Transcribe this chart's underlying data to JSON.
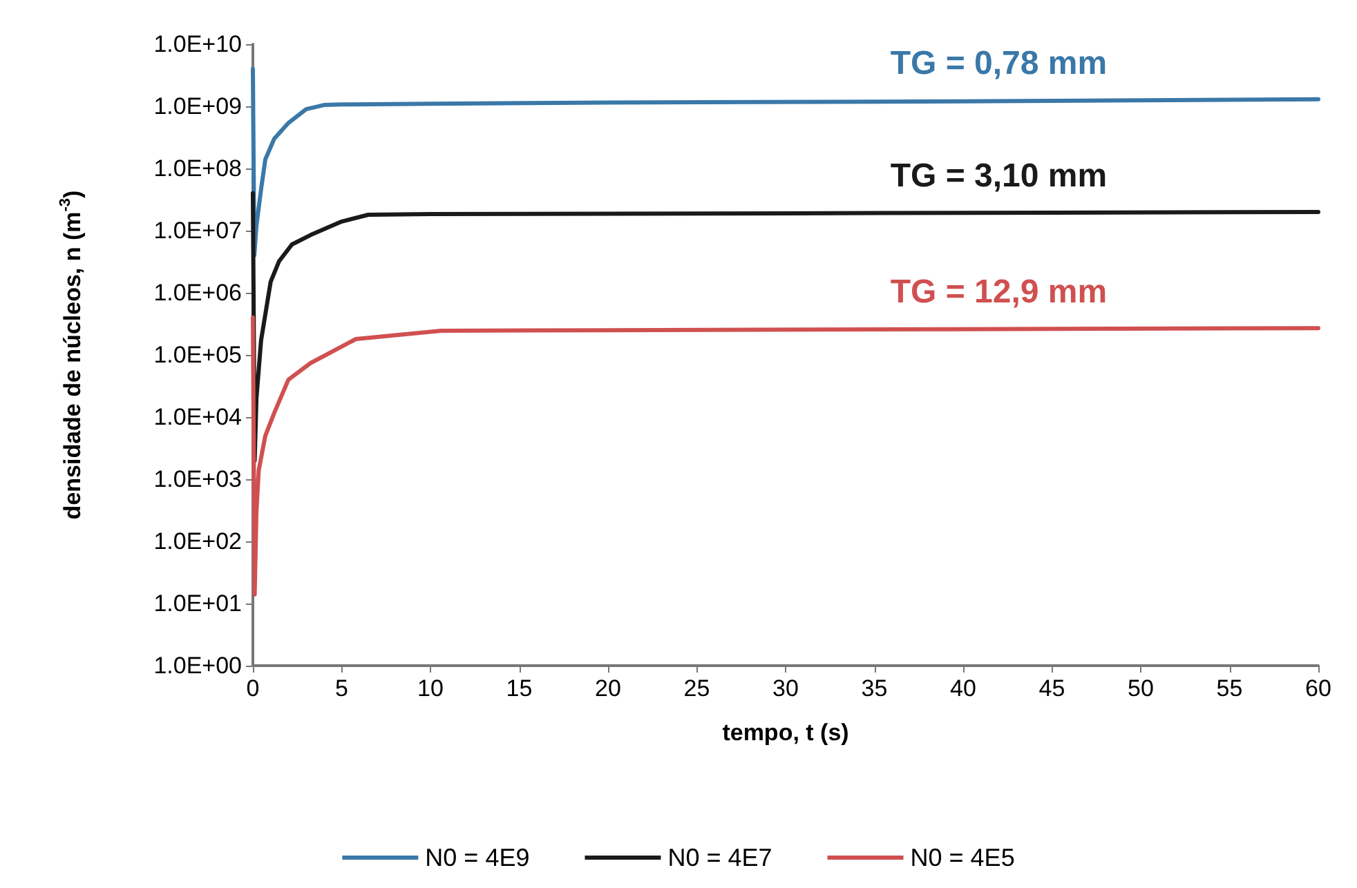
{
  "chart_data": {
    "type": "line",
    "xlabel": "tempo, t (s)",
    "ylabel": "densidade de núcleos, n (m$^{-3}$)",
    "log": "y",
    "xlim": [
      0,
      60
    ],
    "xticks": [
      0,
      5,
      10,
      15,
      20,
      25,
      30,
      35,
      40,
      45,
      50,
      55,
      60
    ],
    "ylim": [
      1,
      10000000000
    ],
    "yticks": [
      {
        "value": 1,
        "label": "1.0E+00"
      },
      {
        "value": 10,
        "label": "1.0E+01"
      },
      {
        "value": 100,
        "label": "1.0E+02"
      },
      {
        "value": 1000,
        "label": "1.0E+03"
      },
      {
        "value": 10000,
        "label": "1.0E+04"
      },
      {
        "value": 100000,
        "label": "1.0E+05"
      },
      {
        "value": 1000000,
        "label": "1.0E+06"
      },
      {
        "value": 10000000,
        "label": "1.0E+07"
      },
      {
        "value": 100000000,
        "label": "1.0E+08"
      },
      {
        "value": 1000000000,
        "label": "1.0E+09"
      },
      {
        "value": 10000000000,
        "label": "1.0E+10"
      }
    ],
    "grid": false,
    "legend": "bottom",
    "marker": "none",
    "line_style": "solid",
    "series": [
      {
        "name": "N0 = 4E9",
        "color": "#3a78a8",
        "x": [
          0,
          0.08,
          0.2,
          0.46,
          0.7,
          1.2,
          2,
          3,
          4,
          5,
          10,
          20,
          40,
          60
        ],
        "values": [
          4000000000,
          4000000,
          12000000,
          46000000,
          140000000,
          300000000,
          540000000,
          900000000,
          1050000000,
          1070000000,
          1100000000,
          1150000000,
          1200000000,
          1300000000
        ]
      },
      {
        "name": "N0 = 4E7",
        "color": "#1a1a1a",
        "x": [
          0,
          0.1,
          0.2,
          0.46,
          1,
          1.47,
          2.2,
          3.25,
          5,
          6.5,
          10,
          30,
          60
        ],
        "values": [
          40000000,
          2000,
          20000,
          170000,
          1500000,
          3200000,
          6000000,
          8500000,
          14000000,
          18000000,
          18500000,
          19000000,
          20000000
        ]
      },
      {
        "name": "N0 = 4E5",
        "color": "#d05050",
        "x": [
          0,
          0.1,
          0.2,
          0.33,
          0.7,
          1.22,
          2,
          3.25,
          5.8,
          10.6,
          20,
          40,
          60
        ],
        "values": [
          400000,
          14,
          300,
          1400,
          5000,
          12000,
          40000,
          74000,
          180000,
          245000,
          250000,
          260000,
          270000
        ]
      }
    ],
    "annotations": [
      "TG = 0,78 mm",
      "TG = 3,10 mm",
      "TG = 12,9 mm"
    ]
  }
}
